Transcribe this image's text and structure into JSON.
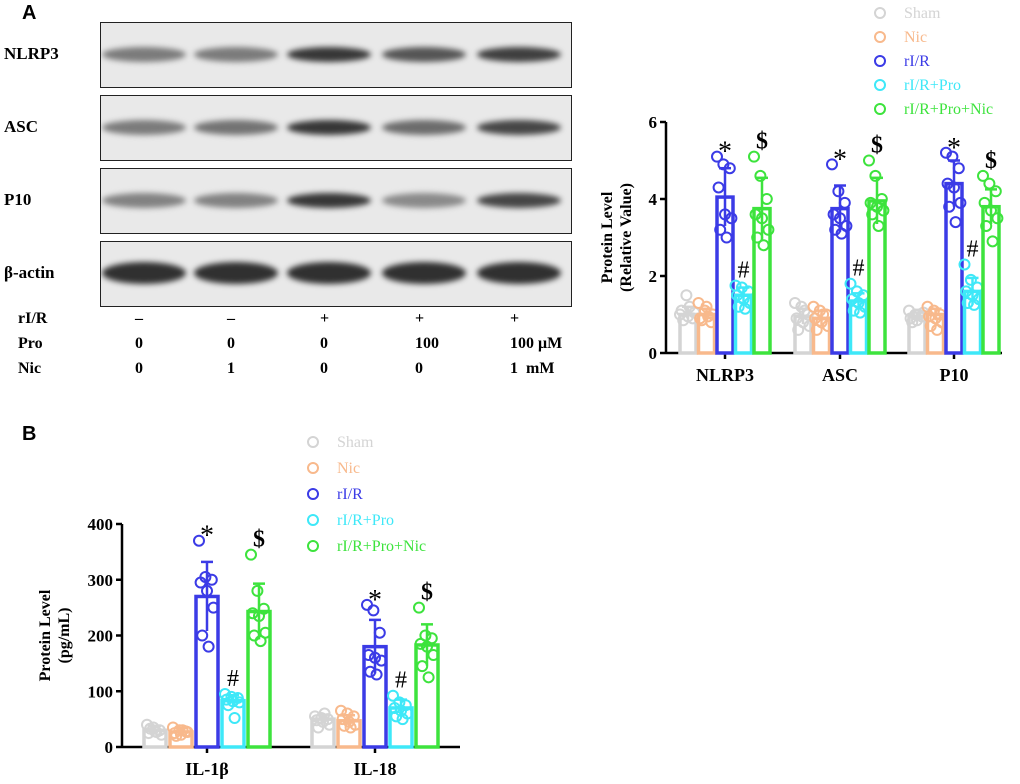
{
  "panels": {
    "a": "A",
    "b": "B"
  },
  "blot": {
    "rows": [
      {
        "label": "NLRP3",
        "intensity": [
          0.45,
          0.45,
          0.9,
          0.7,
          0.85
        ]
      },
      {
        "label": "ASC",
        "intensity": [
          0.45,
          0.5,
          0.9,
          0.55,
          0.8
        ]
      },
      {
        "label": "P10",
        "intensity": [
          0.4,
          0.4,
          0.9,
          0.35,
          0.8
        ]
      },
      {
        "label": "β-actin",
        "intensity": [
          0.95,
          0.95,
          0.95,
          0.95,
          0.95
        ]
      }
    ],
    "conditions": [
      {
        "label": "rI/R",
        "values": [
          "–",
          "–",
          "+",
          "+",
          "+"
        ]
      },
      {
        "label": "Pro",
        "values": [
          "0",
          "0",
          "0",
          "100",
          "100 μM"
        ]
      },
      {
        "label": "Nic",
        "values": [
          "0",
          "1",
          "0",
          "0",
          "1  mM"
        ]
      }
    ]
  },
  "legend": [
    {
      "name": "Sham",
      "color": "#d4d4d4"
    },
    {
      "name": "Nic",
      "color": "#f8b98c"
    },
    {
      "name": "rI/R",
      "color": "#3b3be6"
    },
    {
      "name": "rI/R+Pro",
      "color": "#3ee8f8"
    },
    {
      "name": "rI/R+Pro+Nic",
      "color": "#3de33d"
    }
  ],
  "chart_data": [
    {
      "type": "bar",
      "ylabel": "Protein Level (Relative Value)",
      "ylabel_lines": [
        "Protein Level",
        "(Relative Value)"
      ],
      "ylim": [
        0,
        6
      ],
      "yticks": [
        "0",
        "2",
        "4",
        "6"
      ],
      "categories": [
        "NLRP3",
        "ASC",
        "P10"
      ],
      "markers": [
        "",
        "",
        "*",
        "#",
        "$"
      ],
      "series": [
        {
          "name": "Sham",
          "values": [
            1.0,
            0.95,
            0.95
          ],
          "sd": [
            0.2,
            0.2,
            0.1
          ],
          "points": [
            [
              1.0,
              1.5,
              0.9,
              1.1,
              0.95,
              1.05,
              0.85,
              1.2
            ],
            [
              1.3,
              1.2,
              1.0,
              0.9,
              0.8,
              0.7,
              0.6,
              1.1
            ],
            [
              1.1,
              1.0,
              0.95,
              0.9,
              0.85,
              1.05,
              0.8,
              1.0
            ]
          ]
        },
        {
          "name": "Nic",
          "values": [
            1.0,
            0.9,
            1.0
          ],
          "sd": [
            0.15,
            0.2,
            0.15
          ],
          "points": [
            [
              1.3,
              1.1,
              0.8,
              0.9,
              1.2,
              1.0,
              0.85,
              0.95
            ],
            [
              1.2,
              1.1,
              1.0,
              0.9,
              0.8,
              0.7,
              0.6,
              1.0
            ],
            [
              1.2,
              1.1,
              1.0,
              0.95,
              0.9,
              0.8,
              0.7,
              0.6
            ]
          ]
        },
        {
          "name": "rI/R",
          "values": [
            4.05,
            3.75,
            4.4
          ],
          "sd": [
            0.75,
            0.6,
            0.6
          ],
          "points": [
            [
              5.1,
              4.9,
              4.8,
              4.3,
              3.6,
              3.5,
              3.2,
              3.0
            ],
            [
              4.9,
              4.2,
              3.9,
              3.6,
              3.5,
              3.3,
              3.2,
              3.1
            ],
            [
              5.2,
              5.1,
              4.8,
              4.4,
              4.3,
              3.9,
              3.8,
              3.4
            ]
          ]
        },
        {
          "name": "rI/R+Pro",
          "values": [
            1.5,
            1.35,
            1.6
          ],
          "sd": [
            0.2,
            0.2,
            0.35
          ],
          "points": [
            [
              1.75,
              1.7,
              1.6,
              1.5,
              1.4,
              1.3,
              1.2,
              1.15
            ],
            [
              1.8,
              1.6,
              1.5,
              1.4,
              1.3,
              1.2,
              1.1,
              1.05
            ],
            [
              2.3,
              1.9,
              1.7,
              1.6,
              1.5,
              1.4,
              1.3,
              1.25
            ]
          ]
        },
        {
          "name": "rI/R+Pro+Nic",
          "values": [
            3.75,
            3.95,
            3.8
          ],
          "sd": [
            0.8,
            0.6,
            0.45
          ],
          "points": [
            [
              5.1,
              4.6,
              4.0,
              3.6,
              3.5,
              3.2,
              3.0,
              2.8
            ],
            [
              5.0,
              4.6,
              4.0,
              3.9,
              3.8,
              3.7,
              3.6,
              3.3
            ],
            [
              4.6,
              4.4,
              4.2,
              3.9,
              3.7,
              3.5,
              3.3,
              2.9
            ]
          ]
        }
      ]
    },
    {
      "type": "bar",
      "ylabel": "Protein Level (pg/mL)",
      "ylabel_lines": [
        "Protein Level",
        "(pg/mL)"
      ],
      "ylim": [
        0,
        400
      ],
      "yticks": [
        "0",
        "100",
        "200",
        "300",
        "400"
      ],
      "categories": [
        "IL-1β",
        "IL-18"
      ],
      "markers": [
        "",
        "",
        "*",
        "#",
        "$"
      ],
      "series": [
        {
          "name": "Sham",
          "values": [
            30,
            50
          ],
          "sd": [
            8,
            8
          ],
          "points": [
            [
              40,
              35,
              30,
              25,
              28,
              22,
              33,
              27
            ],
            [
              55,
              52,
              50,
              48,
              45,
              40,
              35,
              60
            ]
          ]
        },
        {
          "name": "Nic",
          "values": [
            27,
            47
          ],
          "sd": [
            7,
            10
          ],
          "points": [
            [
              35,
              30,
              28,
              25,
              22,
              27,
              20,
              30
            ],
            [
              65,
              60,
              55,
              50,
              45,
              40,
              38,
              35
            ]
          ]
        },
        {
          "name": "rI/R",
          "values": [
            270,
            180
          ],
          "sd": [
            62,
            48
          ],
          "points": [
            [
              370,
              305,
              300,
              295,
              280,
              250,
              200,
              180
            ],
            [
              255,
              245,
              205,
              165,
              160,
              155,
              135,
              130
            ]
          ]
        },
        {
          "name": "rI/R+Pro",
          "values": [
            83,
            70
          ],
          "sd": [
            10,
            15
          ],
          "points": [
            [
              95,
              90,
              88,
              85,
              82,
              80,
              75,
              52
            ],
            [
              92,
              80,
              75,
              70,
              65,
              60,
              55,
              50
            ]
          ]
        },
        {
          "name": "rI/R+Pro+Nic",
          "values": [
            243,
            183
          ],
          "sd": [
            50,
            37
          ],
          "points": [
            [
              345,
              280,
              248,
              240,
              235,
              205,
              200,
              190
            ],
            [
              250,
              200,
              195,
              185,
              180,
              165,
              145,
              125
            ]
          ]
        }
      ]
    }
  ]
}
